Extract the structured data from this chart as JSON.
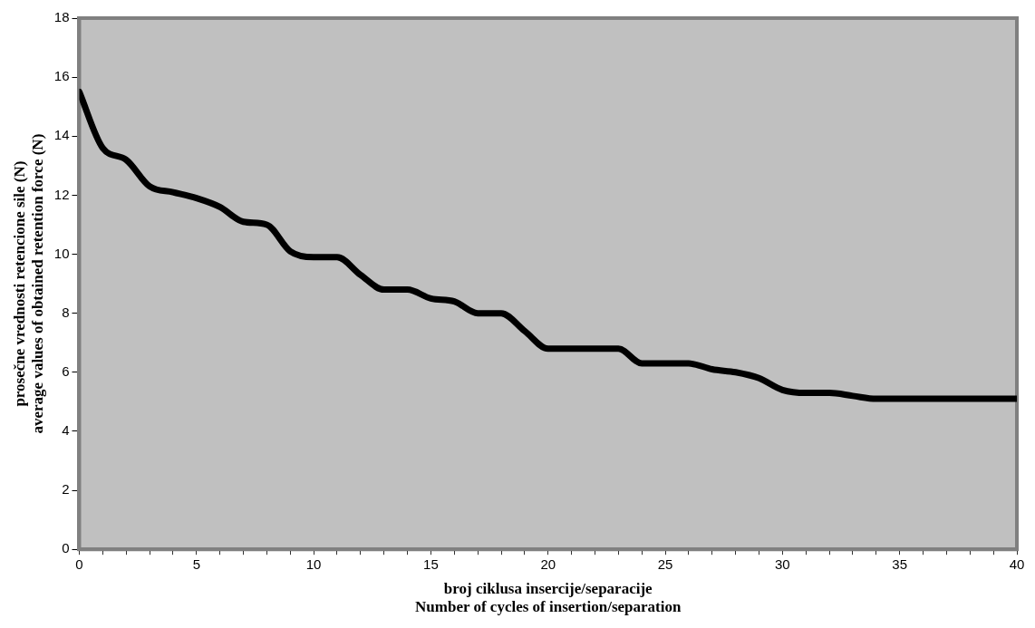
{
  "chart_data": {
    "type": "line",
    "xlabel": "broj ciklusa insercije/separacije\nNumber of cycles of insertion/separation",
    "ylabel": "prosečne vrednosti retencione sile (N)\naverage values of obtained retention force (N)",
    "x": [
      0,
      1,
      2,
      3,
      4,
      5,
      6,
      7,
      8,
      9,
      10,
      11,
      12,
      13,
      14,
      15,
      16,
      17,
      18,
      19,
      20,
      21,
      22,
      23,
      24,
      25,
      26,
      27,
      28,
      29,
      30,
      31,
      32,
      33,
      34,
      35,
      36,
      37,
      38,
      39,
      40
    ],
    "series": [
      {
        "color": "#000000",
        "values": [
          15.5,
          13.6,
          13.2,
          12.3,
          12.1,
          11.9,
          11.6,
          11.1,
          11.0,
          10.1,
          9.9,
          9.9,
          9.3,
          8.8,
          8.8,
          8.5,
          8.4,
          8.0,
          8.0,
          7.4,
          6.8,
          6.8,
          6.8,
          6.8,
          6.3,
          6.3,
          6.3,
          6.1,
          6.0,
          5.8,
          5.4,
          5.3,
          5.3,
          5.2,
          5.1,
          5.1,
          5.1,
          5.1,
          5.1,
          5.1,
          5.1
        ]
      }
    ],
    "xlim": [
      0,
      40
    ],
    "ylim": [
      0,
      18
    ],
    "xticks": [
      0,
      {
        "value": 1,
        "label": null
      },
      {
        "value": 2,
        "label": null
      },
      {
        "value": 3,
        "label": null
      },
      {
        "value": 4,
        "label": null
      },
      5,
      {
        "value": 6,
        "label": null
      },
      {
        "value": 7,
        "label": null
      },
      {
        "value": 8,
        "label": null
      },
      {
        "value": 9,
        "label": null
      },
      10,
      {
        "value": 11,
        "label": null
      },
      {
        "value": 12,
        "label": null
      },
      {
        "value": 13,
        "label": null
      },
      {
        "value": 14,
        "label": null
      },
      15,
      {
        "value": 16,
        "label": null
      },
      {
        "value": 17,
        "label": null
      },
      {
        "value": 18,
        "label": null
      },
      {
        "value": 19,
        "label": null
      },
      20,
      {
        "value": 21,
        "label": null
      },
      {
        "value": 22,
        "label": null
      },
      {
        "value": 23,
        "label": null
      },
      {
        "value": 24,
        "label": null
      },
      25,
      {
        "value": 26,
        "label": null
      },
      {
        "value": 27,
        "label": null
      },
      {
        "value": 28,
        "label": null
      },
      {
        "value": 29,
        "label": null
      },
      30,
      {
        "value": 31,
        "label": null
      },
      {
        "value": 32,
        "label": null
      },
      {
        "value": 33,
        "label": null
      },
      {
        "value": 34,
        "label": null
      },
      35,
      {
        "value": 36,
        "label": null
      },
      {
        "value": 37,
        "label": null
      },
      {
        "value": 38,
        "label": null
      },
      {
        "value": 39,
        "label": null
      },
      40
    ],
    "yticks": [
      0,
      2,
      4,
      6,
      8,
      10,
      12,
      14,
      16,
      18
    ],
    "grid": false,
    "legend": false,
    "marker": "none",
    "line_style": "solid"
  }
}
